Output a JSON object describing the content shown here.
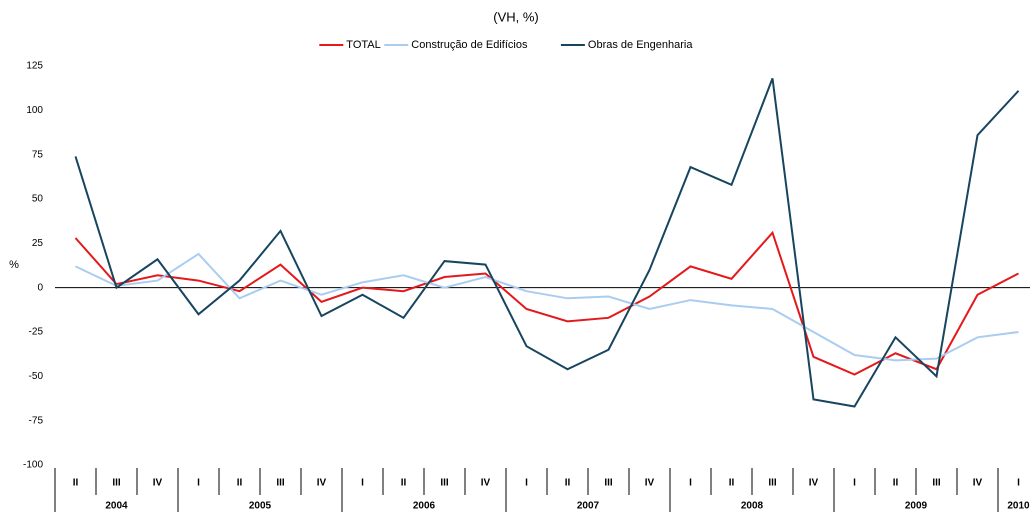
{
  "chart_data": {
    "type": "line",
    "title": "(VH, %)",
    "y_label": "%",
    "categories": [
      "II",
      "III",
      "IV",
      "I",
      "II",
      "III",
      "IV",
      "I",
      "II",
      "III",
      "IV",
      "I",
      "II",
      "III",
      "IV",
      "I",
      "II",
      "III",
      "IV",
      "I",
      "II",
      "III",
      "IV",
      "I"
    ],
    "year_groups": [
      {
        "label": "2004",
        "size": 3
      },
      {
        "label": "2005",
        "size": 4
      },
      {
        "label": "2006",
        "size": 4
      },
      {
        "label": "2007",
        "size": 4
      },
      {
        "label": "2008",
        "size": 4
      },
      {
        "label": "2009",
        "size": 4
      },
      {
        "label": "2010",
        "size": 1
      }
    ],
    "series": [
      {
        "name": "TOTAL",
        "color": "#e3191b",
        "values": [
          28,
          2,
          7,
          4,
          -2,
          13,
          -8,
          0,
          -2,
          6,
          8,
          -12,
          -19,
          -17,
          -5,
          12,
          5,
          31,
          -39,
          -49,
          -37,
          -46,
          -4,
          8
        ]
      },
      {
        "name": "Construção de Edifícios",
        "color": "#a9cdf1",
        "values": [
          12,
          1,
          4,
          19,
          -6,
          4,
          -4,
          3,
          7,
          0,
          6,
          -2,
          -6,
          -5,
          -12,
          -7,
          -10,
          -12,
          -25,
          -38,
          -41,
          -40,
          -28,
          -25
        ]
      },
      {
        "name": "Obras de Engenharia",
        "color": "#17455f",
        "values": [
          74,
          0,
          16,
          -15,
          4,
          32,
          -16,
          -4,
          -17,
          15,
          13,
          -33,
          -46,
          -35,
          10,
          68,
          58,
          118,
          -63,
          -67,
          -28,
          -50,
          86,
          111
        ]
      }
    ],
    "ylim": [
      -100,
      125
    ],
    "yticks": [
      125,
      100,
      75,
      50,
      25,
      0,
      -25,
      -50,
      -75,
      -100
    ],
    "grid": false,
    "zero_line": true,
    "legend": "top"
  }
}
